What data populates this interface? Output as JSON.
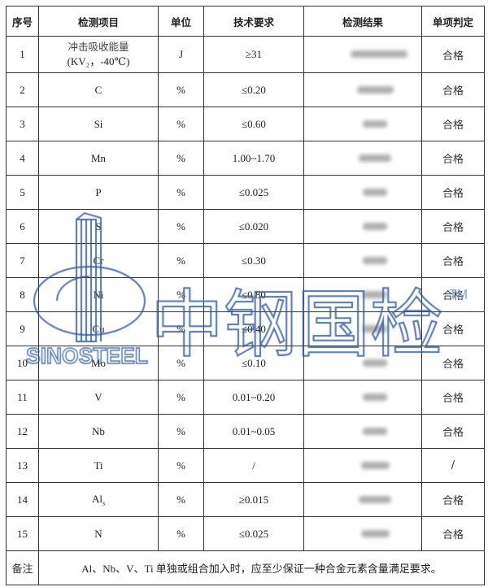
{
  "headers": [
    "序号",
    "检测项目",
    "单位",
    "技术要求",
    "检测结果",
    "单项判定"
  ],
  "rows": [
    {
      "no": "1",
      "item": "冲击吸收能量",
      "item2": "(KV₂，-40℃)",
      "unit": "J",
      "req": "≥31",
      "verdict": "合格"
    },
    {
      "no": "2",
      "item": "C",
      "unit": "%",
      "req": "≤0.20",
      "verdict": "合格"
    },
    {
      "no": "3",
      "item": "Si",
      "unit": "%",
      "req": "≤0.60",
      "verdict": "合格"
    },
    {
      "no": "4",
      "item": "Mn",
      "unit": "%",
      "req": "1.00~1.70",
      "verdict": "合格"
    },
    {
      "no": "5",
      "item": "P",
      "unit": "%",
      "req": "≤0.025",
      "verdict": "合格"
    },
    {
      "no": "6",
      "item": "S",
      "unit": "%",
      "req": "≤0.020",
      "verdict": "合格"
    },
    {
      "no": "7",
      "item": "Cr",
      "unit": "%",
      "req": "≤0.30",
      "verdict": "合格"
    },
    {
      "no": "8",
      "item": "Ni",
      "unit": "%",
      "req": "≤0.80",
      "verdict": "合格"
    },
    {
      "no": "9",
      "item": "Cu",
      "unit": "%",
      "req": "≤0.40",
      "verdict": "合格"
    },
    {
      "no": "10",
      "item": "Mo",
      "unit": "%",
      "req": "≤0.10",
      "verdict": "合格"
    },
    {
      "no": "11",
      "item": "V",
      "unit": "%",
      "req": "0.01~0.20",
      "verdict": "合格"
    },
    {
      "no": "12",
      "item": "Nb",
      "unit": "%",
      "req": "0.01~0.05",
      "verdict": "合格"
    },
    {
      "no": "13",
      "item": "Ti",
      "unit": "%",
      "req": "/",
      "verdict": "/"
    },
    {
      "no": "14",
      "item": "Al",
      "item_sub": "s",
      "unit": "%",
      "req": "≥0.015",
      "verdict": "合格"
    },
    {
      "no": "15",
      "item": "N",
      "unit": "%",
      "req": "≤0.025",
      "verdict": "合格"
    }
  ],
  "remark": {
    "label": "备注",
    "text": "Al、Nb、V、Ti 单独或组合加入时，应至少保证一种合金元素含量满足要求。"
  },
  "watermark": {
    "brand": "SINOSTEEL",
    "cn": "中钢国检",
    "tm": "TM",
    "color": "#2f5aa0"
  }
}
